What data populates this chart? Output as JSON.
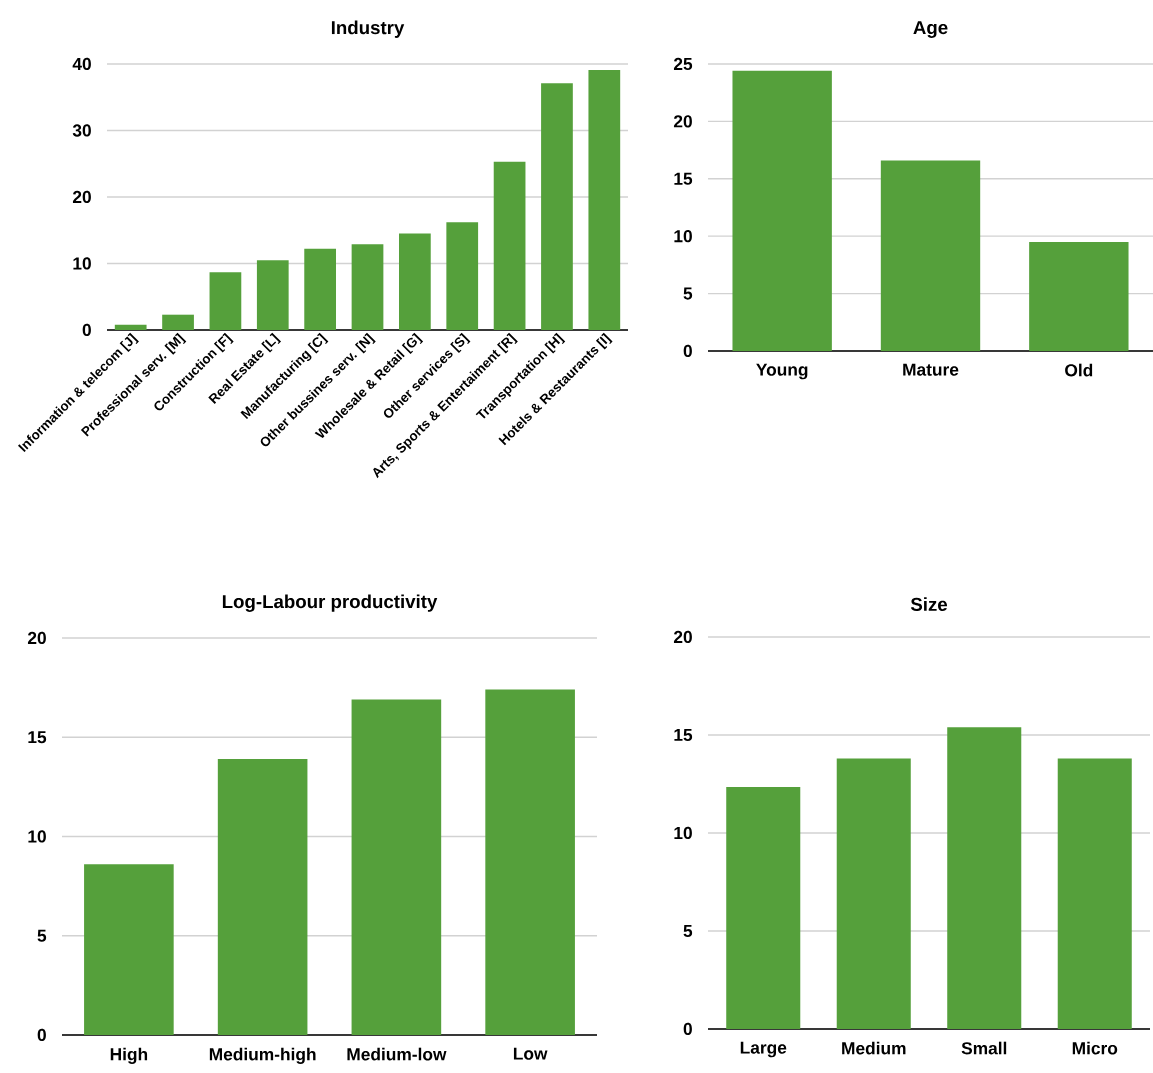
{
  "chart_data": [
    {
      "type": "bar",
      "title": "Industry",
      "categories": [
        "Information & telecom [J]",
        "Professional serv. [M]",
        "Construction [F]",
        "Real Estate [L]",
        "Manufacturing [C]",
        "Other bussines serv. [N]",
        "Wholesale & Retail [G]",
        "Other services [S]",
        "Arts, Sports & Entertaiment [R]",
        "Transportation [H]",
        "Hotels & Restaurants [I]"
      ],
      "values": [
        0.8,
        2.3,
        8.7,
        10.5,
        12.2,
        12.9,
        14.5,
        16.2,
        25.3,
        37.1,
        39.1
      ],
      "color": "#55a03b",
      "ylim": [
        0,
        40
      ],
      "yticks": [
        0,
        10,
        20,
        30,
        40
      ],
      "grid": "y"
    },
    {
      "type": "bar",
      "title": "Age",
      "categories": [
        "Young",
        "Mature",
        "Old"
      ],
      "values": [
        24.4,
        16.6,
        9.5
      ],
      "color": "#55a03b",
      "ylim": [
        0,
        25
      ],
      "yticks": [
        0,
        5,
        10,
        15,
        20,
        25
      ],
      "grid": "y"
    },
    {
      "type": "bar",
      "title": "Log-Labour productivity",
      "categories": [
        "High",
        "Medium-high",
        "Medium-low",
        "Low"
      ],
      "values": [
        8.6,
        13.9,
        16.9,
        17.4
      ],
      "color": "#55a03b",
      "ylim": [
        0,
        20
      ],
      "yticks": [
        0,
        5,
        10,
        15,
        20
      ],
      "grid": "y"
    },
    {
      "type": "bar",
      "title": "Size",
      "categories": [
        "Large",
        "Medium",
        "Small",
        "Micro"
      ],
      "values": [
        12.35,
        13.8,
        15.4,
        13.8
      ],
      "color": "#55a03b",
      "ylim": [
        0,
        20
      ],
      "yticks": [
        0,
        5,
        10,
        15,
        20
      ],
      "grid": "y"
    }
  ]
}
